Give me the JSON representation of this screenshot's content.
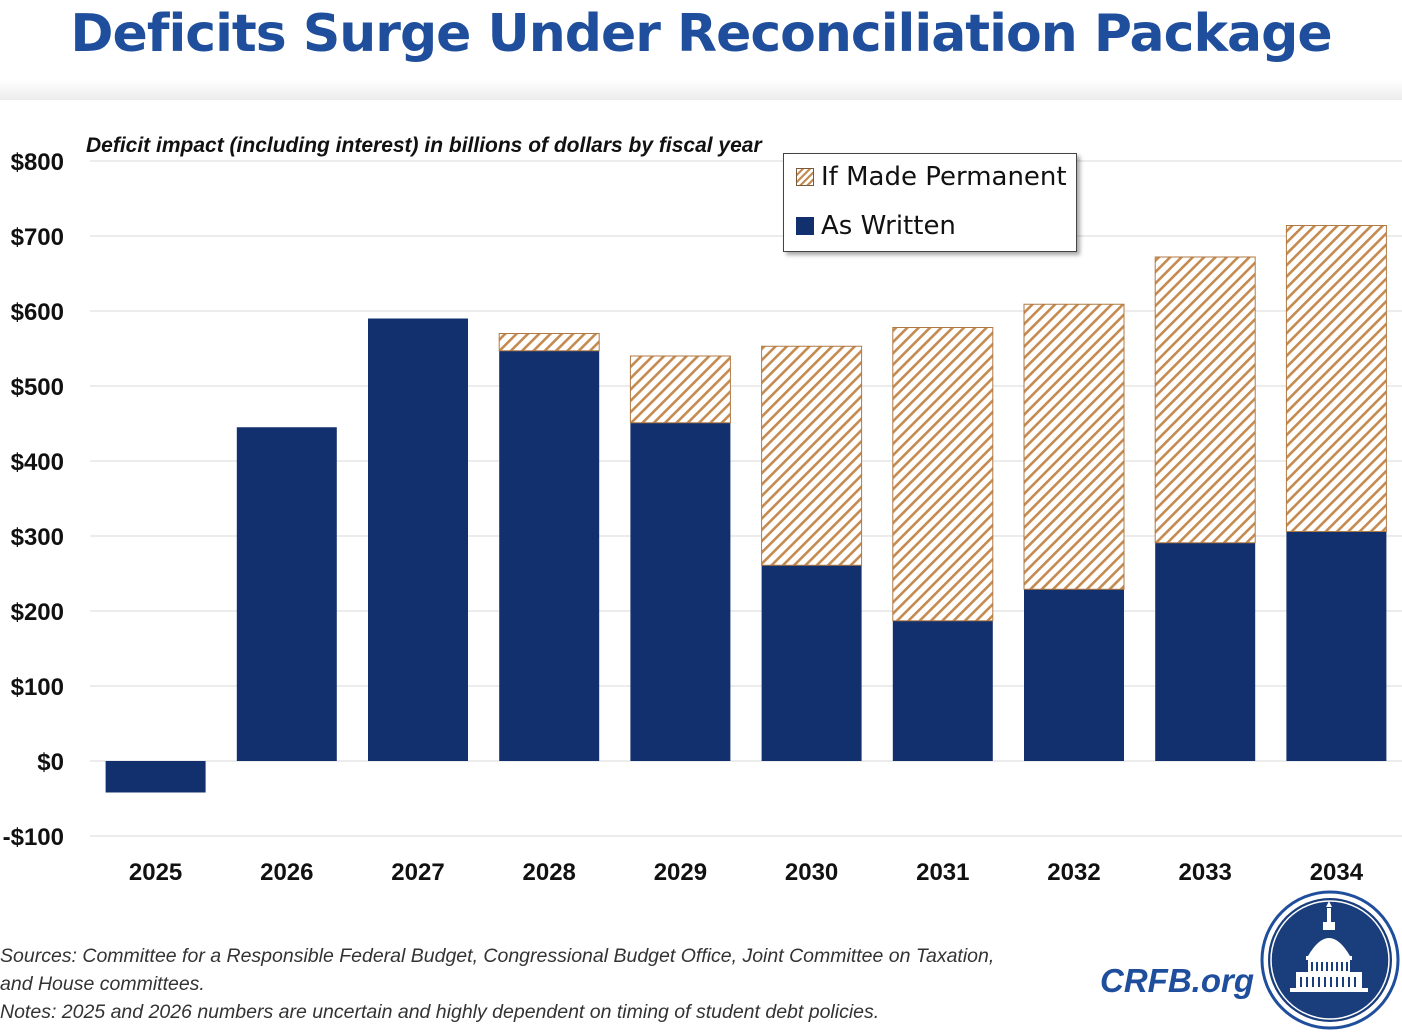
{
  "title": "Deficits Surge Under Reconciliation Package",
  "subtitle": "Deficit impact (including interest) in billions of dollars by fiscal year",
  "legend": {
    "permanent": "If Made Permanent",
    "written": "As Written"
  },
  "footer": {
    "sources_line1": "Sources: Committee for a Responsible Federal Budget, Congressional Budget Office, Joint Committee on Taxation,",
    "sources_line2": "and House committees.",
    "notes": "Notes: 2025 and 2026 numbers are uncertain and highly dependent on timing of student debt policies.",
    "brand": "CRFB.org"
  },
  "colors": {
    "as_written": "#13306e",
    "permanent_hatch": "#c48a4f",
    "title": "#1f4e9c"
  },
  "chart_data": {
    "type": "bar",
    "stacked": true,
    "title": "Deficits Surge Under Reconciliation Package",
    "ylabel": "Deficit impact (including interest) in billions of dollars by fiscal year",
    "categories": [
      "2025",
      "2026",
      "2027",
      "2028",
      "2029",
      "2030",
      "2031",
      "2032",
      "2033",
      "2034"
    ],
    "series": [
      {
        "name": "As Written",
        "values": [
          -42,
          445,
          590,
          547,
          451,
          261,
          187,
          229,
          291,
          306
        ]
      },
      {
        "name": "If Made Permanent",
        "values": [
          0,
          0,
          0,
          23,
          89,
          292,
          391,
          380,
          381,
          408
        ]
      }
    ],
    "ylim": [
      -100,
      800
    ],
    "yticks": [
      -100,
      0,
      100,
      200,
      300,
      400,
      500,
      600,
      700,
      800
    ],
    "ytick_labels": [
      "-$100",
      "$0",
      "$100",
      "$200",
      "$300",
      "$400",
      "$500",
      "$600",
      "$700",
      "$800"
    ],
    "grid": true,
    "legend_position": "top-right"
  }
}
